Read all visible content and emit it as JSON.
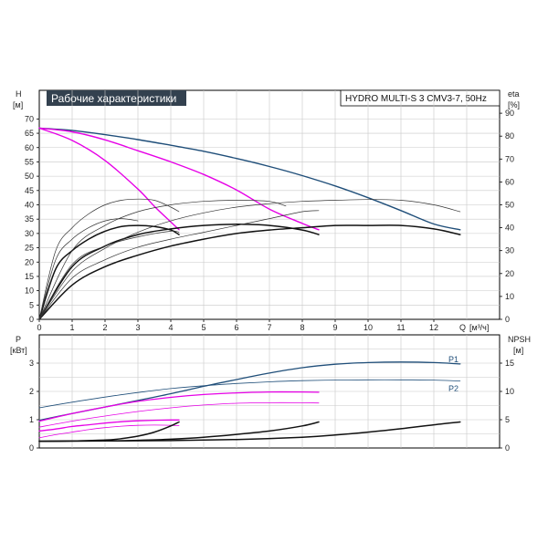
{
  "chart_data": [
    {
      "type": "line",
      "title": "Рабочие характеристики",
      "subtitle": "HYDRO MULTI-S 3 CMV3-7, 50Hz",
      "xlabel": "Q",
      "xunit": "[м³/ч]",
      "ylabel": "H",
      "yunit": "[м]",
      "y2label": "eta",
      "y2unit": "[%]",
      "xlim": [
        0,
        14
      ],
      "ylim": [
        0,
        80
      ],
      "y2lim": [
        0,
        100
      ],
      "x_ticks": [
        "0",
        "1",
        "2",
        "3",
        "4",
        "5",
        "6",
        "7",
        "8",
        "9",
        "10",
        "11",
        "12"
      ],
      "y_ticks": [
        "0",
        "5",
        "10",
        "15",
        "20",
        "25",
        "30",
        "35",
        "40",
        "45",
        "50",
        "55",
        "60",
        "65",
        "70"
      ],
      "y2_ticks": [
        "0",
        "10",
        "20",
        "30",
        "40",
        "50",
        "60",
        "70",
        "80",
        "90"
      ],
      "grid": true,
      "series": [
        {
          "role": "H, 3 pumps",
          "color": "#1f4e79",
          "width": 1.4,
          "axis": "left",
          "x": [
            0,
            1,
            2,
            3,
            4,
            5,
            6,
            7,
            8,
            9,
            10,
            11,
            12,
            12.8
          ],
          "y": [
            66.8,
            66.0,
            64.5,
            62.8,
            60.8,
            58.7,
            56.2,
            53.4,
            50.2,
            46.6,
            42.5,
            38.0,
            33.3,
            31.3
          ]
        },
        {
          "role": "H, 2 pumps",
          "color": "#e600e6",
          "width": 1.4,
          "axis": "left",
          "x": [
            0,
            1,
            2,
            3,
            4,
            5,
            6,
            7,
            8,
            8.5
          ],
          "y": [
            66.8,
            65.5,
            62.7,
            58.9,
            55.0,
            50.6,
            45.2,
            38.5,
            33.5,
            31.3
          ]
        },
        {
          "role": "H, 1 pump",
          "color": "#e600e6",
          "width": 1.4,
          "axis": "left",
          "x": [
            0,
            1,
            2,
            3,
            3.5,
            4,
            4.25
          ],
          "y": [
            66.8,
            62.5,
            55.5,
            45.5,
            39.5,
            34.0,
            31.3
          ]
        },
        {
          "role": "eta, 3 pumps",
          "color": "#111111",
          "width": 1.5,
          "axis": "right",
          "x": [
            0,
            1,
            2,
            3,
            4,
            5,
            6,
            7,
            8,
            9,
            10,
            11,
            12,
            12.8
          ],
          "y": [
            0,
            15,
            23,
            28,
            32,
            35,
            37.5,
            39,
            40,
            41,
            41,
            41,
            39.5,
            37
          ]
        },
        {
          "role": "eta, 2 pumps",
          "color": "#111111",
          "width": 1.5,
          "axis": "right",
          "x": [
            0,
            1,
            2,
            3,
            4,
            5,
            6,
            7,
            8,
            8.5
          ],
          "y": [
            0,
            23,
            32,
            37,
            39.5,
            41,
            41.5,
            41,
            39,
            37
          ]
        },
        {
          "role": "eta, 1 pump",
          "color": "#111111",
          "width": 1.5,
          "axis": "right",
          "x": [
            0,
            0.5,
            1,
            1.5,
            2,
            2.5,
            3,
            3.5,
            4,
            4.25
          ],
          "y": [
            0,
            22,
            30,
            35,
            38.5,
            40.5,
            41,
            40.5,
            39,
            37
          ]
        },
        {
          "role": "eta thin 3 pumps a",
          "color": "#333333",
          "width": 0.7,
          "axis": "right",
          "x": [
            0,
            1,
            2,
            3,
            4,
            5,
            6,
            7,
            8,
            9,
            10,
            11,
            12,
            12.8
          ],
          "y": [
            0,
            21,
            31,
            38,
            43,
            46.5,
            49,
            50.5,
            51.5,
            52,
            52.3,
            52,
            50,
            47
          ]
        },
        {
          "role": "eta thin 3 pumps b",
          "color": "#333333",
          "width": 0.7,
          "axis": "right",
          "x": [
            0,
            1,
            2,
            3,
            4,
            5,
            6,
            7,
            8,
            8.5
          ],
          "y": [
            0,
            18,
            26,
            31.5,
            35,
            38,
            41,
            44,
            47,
            47.5
          ]
        },
        {
          "role": "eta thin 2 pumps a",
          "color": "#333333",
          "width": 0.7,
          "axis": "right",
          "x": [
            0,
            1,
            2,
            3,
            4,
            5,
            6,
            7,
            7.5
          ],
          "y": [
            0,
            30,
            41,
            47,
            50,
            51.5,
            52,
            51.5,
            49.5
          ]
        },
        {
          "role": "eta thin 2 pumps b",
          "color": "#333333",
          "width": 0.7,
          "axis": "right",
          "x": [
            0,
            1,
            2,
            3,
            4,
            4.25
          ],
          "y": [
            0,
            24,
            32,
            36,
            38.5,
            38
          ]
        },
        {
          "role": "eta thin 1 pump a",
          "color": "#333333",
          "width": 0.7,
          "axis": "right",
          "x": [
            0,
            0.5,
            1,
            1.5,
            2,
            2.5,
            3,
            3.5,
            4,
            4.25
          ],
          "y": [
            0,
            30,
            40,
            46,
            50,
            52,
            52.5,
            52,
            49,
            47
          ]
        },
        {
          "role": "eta thin 1 pump b",
          "color": "#333333",
          "width": 0.7,
          "axis": "right",
          "x": [
            0,
            0.5,
            1,
            1.5,
            2,
            2.5,
            3
          ],
          "y": [
            0,
            26,
            35,
            40,
            43,
            44,
            43
          ]
        }
      ]
    },
    {
      "type": "line",
      "ylabel": "P",
      "yunit": "[кВт]",
      "y2label": "NPSH",
      "y2unit": "[м]",
      "xlim": [
        0,
        14
      ],
      "ylim": [
        0,
        4
      ],
      "y2lim": [
        0,
        20
      ],
      "y_ticks": [
        "0",
        "1",
        "2",
        "3"
      ],
      "y2_ticks": [
        "0",
        "5",
        "10",
        "15"
      ],
      "grid": true,
      "annotations": [
        "P1",
        "P2"
      ],
      "series": [
        {
          "role": "P1, 3 pumps",
          "color": "#1f4e79",
          "width": 1.3,
          "axis": "left",
          "x": [
            0,
            1,
            2,
            3,
            4,
            5,
            6,
            7,
            8,
            9,
            10,
            11,
            12,
            12.8
          ],
          "y": [
            0.98,
            1.22,
            1.45,
            1.68,
            1.92,
            2.18,
            2.42,
            2.65,
            2.84,
            2.96,
            3.02,
            3.04,
            3.02,
            2.97
          ]
        },
        {
          "role": "P2, 3 pumps",
          "color": "#1f4e79",
          "width": 0.8,
          "axis": "left",
          "x": [
            0,
            1,
            2,
            3,
            4,
            5,
            6,
            7,
            8,
            9,
            10,
            11,
            12,
            12.8
          ],
          "y": [
            1.42,
            1.62,
            1.8,
            1.96,
            2.1,
            2.2,
            2.28,
            2.34,
            2.38,
            2.4,
            2.41,
            2.41,
            2.4,
            2.37
          ]
        },
        {
          "role": "P1, 2 pumps",
          "color": "#e600e6",
          "width": 1.3,
          "axis": "left",
          "x": [
            0,
            1,
            2,
            3,
            4,
            5,
            6,
            7,
            8,
            8.5
          ],
          "y": [
            0.95,
            1.22,
            1.45,
            1.65,
            1.79,
            1.89,
            1.95,
            1.98,
            1.98,
            1.97
          ]
        },
        {
          "role": "P2, 2 pumps",
          "color": "#e600e6",
          "width": 0.8,
          "axis": "left",
          "x": [
            0,
            1,
            2,
            3,
            4,
            5,
            6,
            7,
            8,
            8.5
          ],
          "y": [
            0.74,
            0.95,
            1.13,
            1.29,
            1.42,
            1.52,
            1.58,
            1.6,
            1.6,
            1.59
          ]
        },
        {
          "role": "P1, 1 pump",
          "color": "#e600e6",
          "width": 1.3,
          "axis": "left",
          "x": [
            0,
            0.5,
            1,
            1.5,
            2,
            2.5,
            3,
            3.5,
            4,
            4.25
          ],
          "y": [
            0.6,
            0.67,
            0.76,
            0.82,
            0.88,
            0.93,
            0.96,
            0.98,
            0.99,
            0.99
          ]
        },
        {
          "role": "P2, 1 pump",
          "color": "#e600e6",
          "width": 0.8,
          "axis": "left",
          "x": [
            0,
            0.5,
            1,
            1.5,
            2,
            2.5,
            3,
            3.5,
            4,
            4.25
          ],
          "y": [
            0.36,
            0.47,
            0.56,
            0.65,
            0.72,
            0.77,
            0.8,
            0.81,
            0.8,
            0.79
          ]
        },
        {
          "role": "NPSH, 3 pumps",
          "color": "#111111",
          "width": 1.5,
          "axis": "right",
          "x": [
            0,
            2,
            4,
            6,
            8,
            9,
            10,
            11,
            12,
            12.8
          ],
          "y": [
            1.2,
            1.25,
            1.3,
            1.5,
            1.9,
            2.3,
            2.8,
            3.4,
            4.1,
            4.6
          ]
        },
        {
          "role": "NPSH, 2 pumps",
          "color": "#111111",
          "width": 1.5,
          "axis": "right",
          "x": [
            0,
            2,
            3,
            4,
            5,
            6,
            7,
            8,
            8.5
          ],
          "y": [
            1.2,
            1.25,
            1.35,
            1.55,
            1.9,
            2.4,
            3.0,
            3.9,
            4.6
          ]
        },
        {
          "role": "NPSH, 1 pump",
          "color": "#111111",
          "width": 1.5,
          "axis": "right",
          "x": [
            0,
            1,
            2,
            2.5,
            3,
            3.5,
            4,
            4.25
          ],
          "y": [
            1.2,
            1.25,
            1.4,
            1.65,
            2.1,
            2.8,
            3.9,
            4.6
          ]
        }
      ]
    }
  ],
  "labels": {
    "title": "Рабочие характеристики",
    "model": "HYDRO MULTI-S 3 CMV3-7, 50Hz",
    "h_axis": "H",
    "h_unit": "[м]",
    "eta_axis": "eta",
    "eta_unit": "[%]",
    "q_axis": "Q",
    "q_unit": "[м³/ч]",
    "p_axis": "P",
    "p_unit": "[кВт]",
    "npsh_axis": "NPSH",
    "npsh_unit": "[м]",
    "p1": "P1",
    "p2": "P2"
  }
}
